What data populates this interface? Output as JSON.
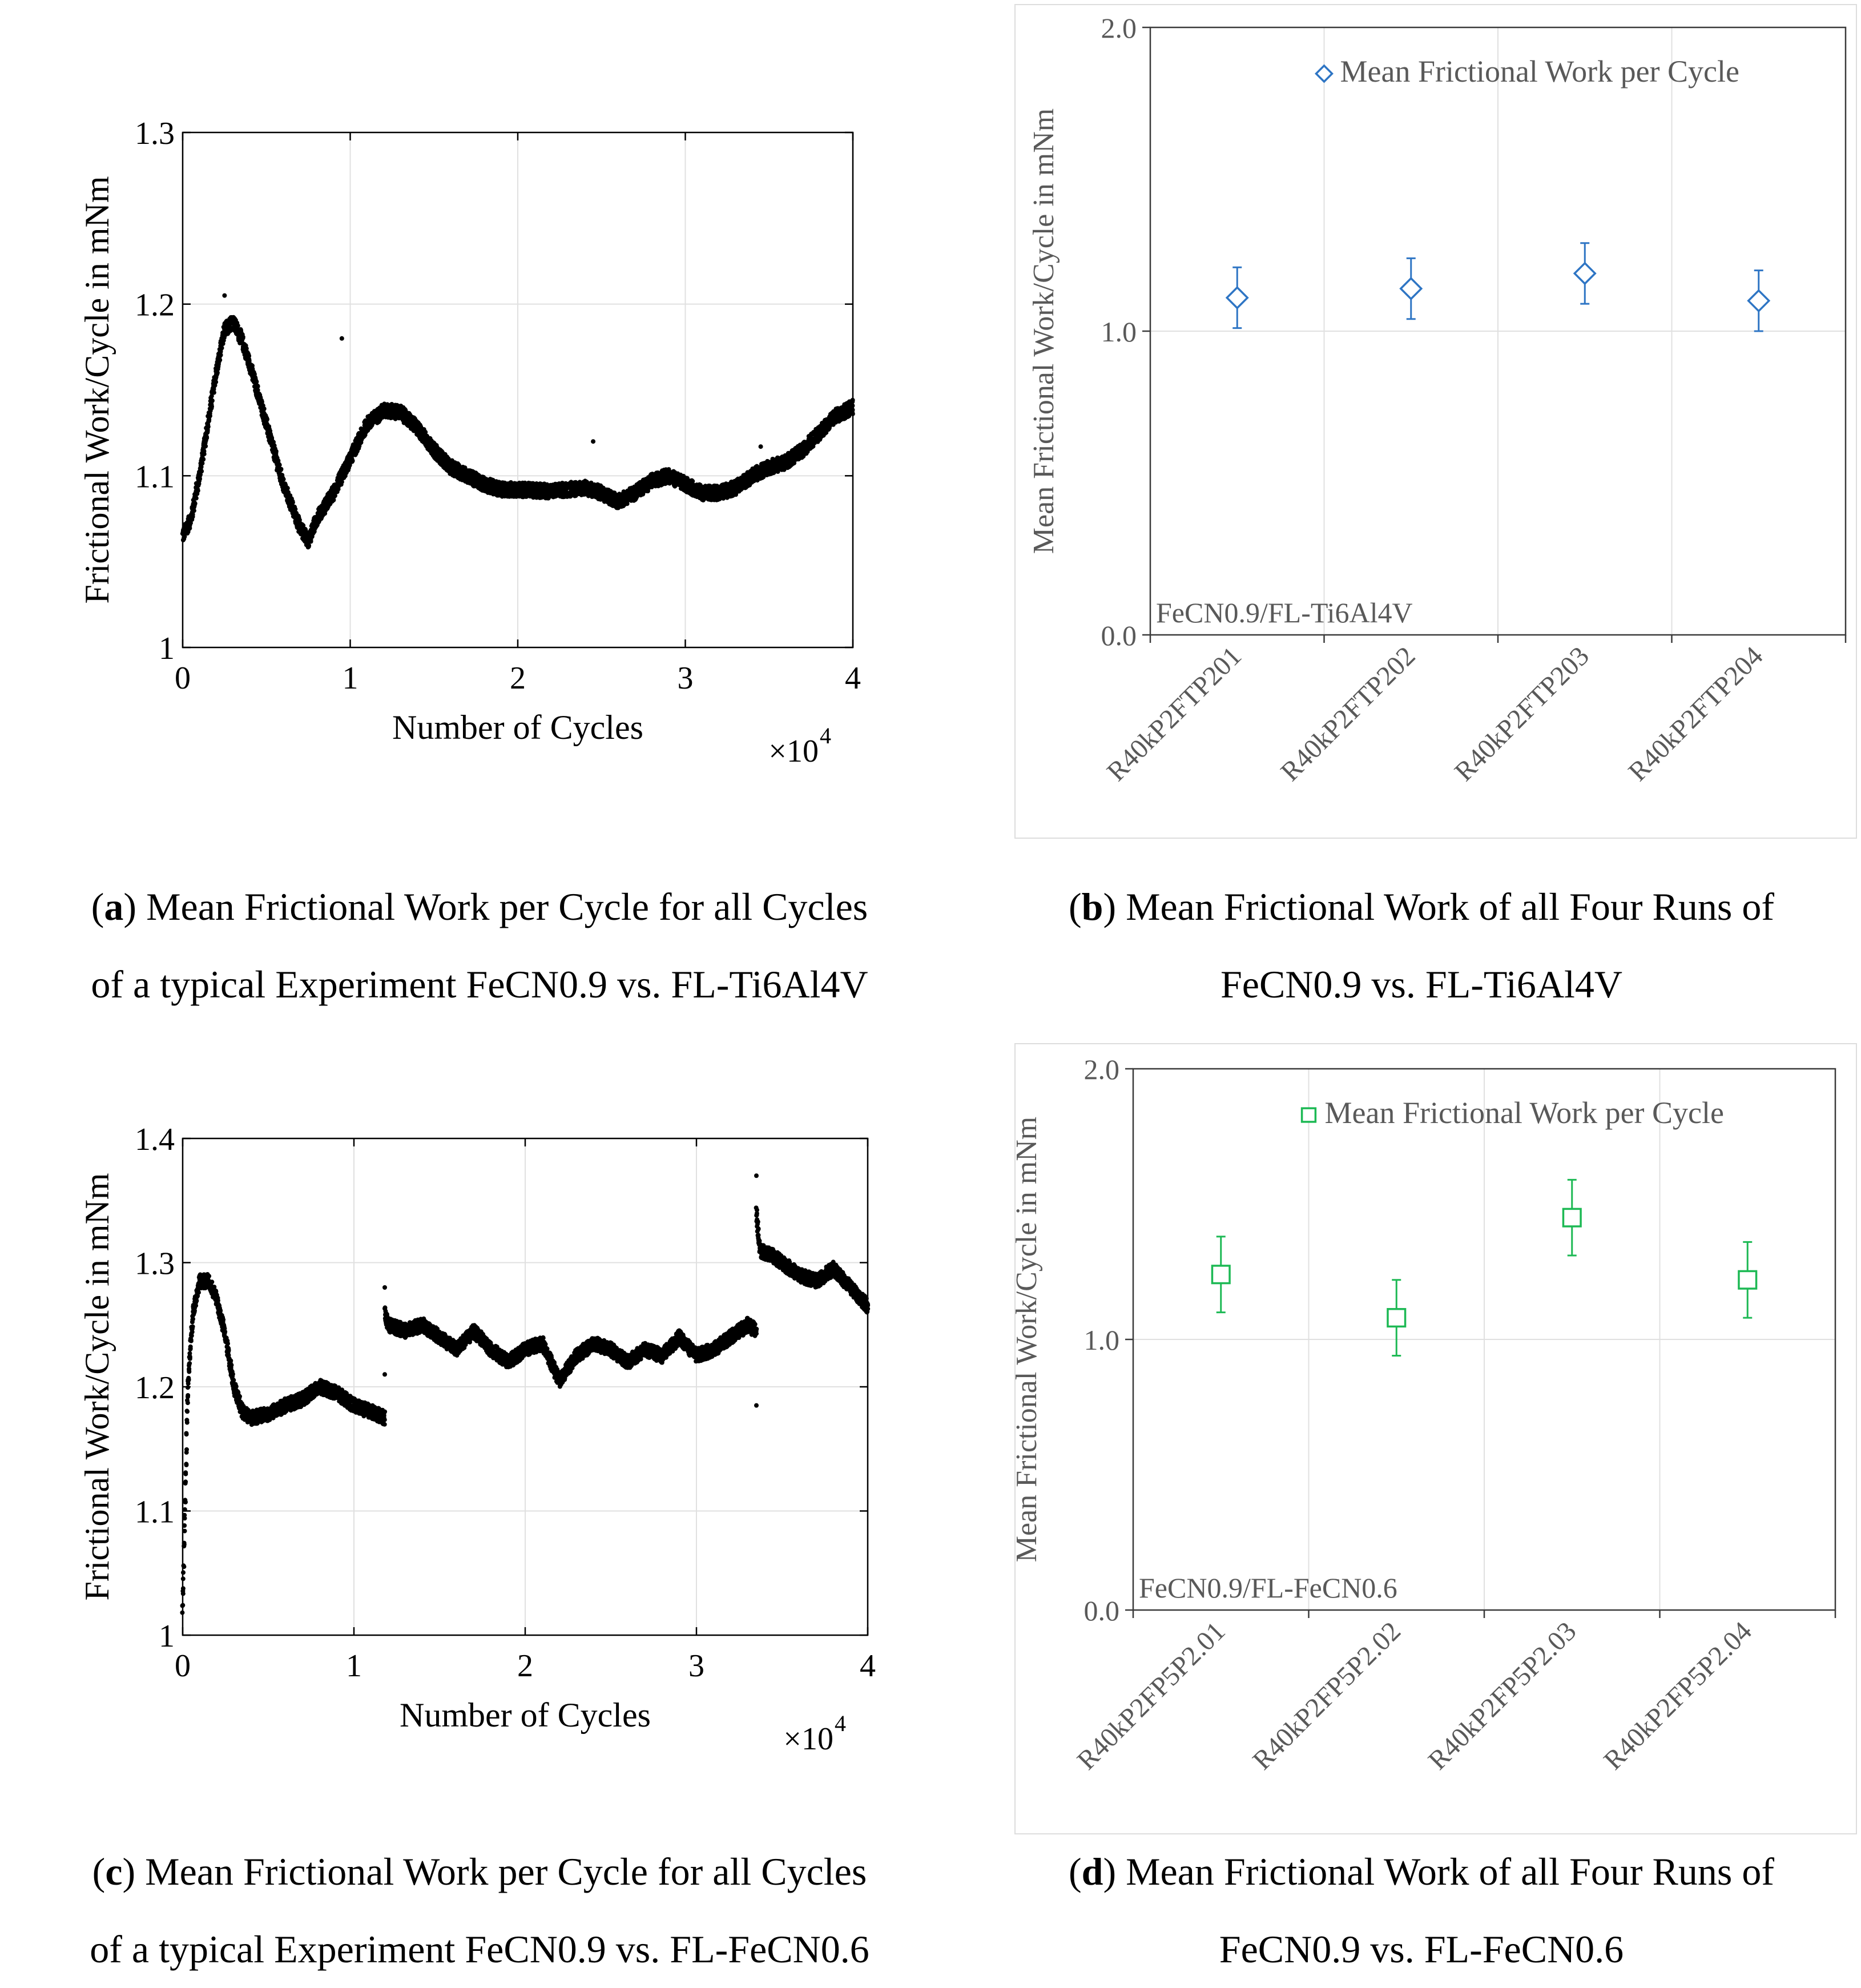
{
  "captions": {
    "a": {
      "letter": "a",
      "line1": ") Mean Frictional Work per Cycle for all Cycles",
      "line2": "of a typical Experiment FeCN0.9 vs. FL-Ti6Al4V"
    },
    "b": {
      "letter": "b",
      "line1": ") Mean Frictional Work of all Four Runs of",
      "line2": "FeCN0.9 vs. FL-Ti6Al4V"
    },
    "c": {
      "letter": "c",
      "line1": ") Mean Frictional Work per Cycle for all Cycles",
      "line2": "of a typical Experiment FeCN0.9 vs. FL-FeCN0.6"
    },
    "d": {
      "letter": "d",
      "line1": ") Mean Frictional Work of all Four Runs of",
      "line2": "FeCN0.9 vs. FL-FeCN0.6"
    }
  },
  "colors": {
    "blue": "#2e75c4",
    "green": "#1db954",
    "black": "#000000",
    "grid": "#e0e0e0",
    "textgray": "#595959"
  },
  "chart_data": [
    {
      "id": "a",
      "type": "scatter",
      "xlabel": "Number of Cycles",
      "ylabel": "Frictional Work/Cycle in mNm",
      "xlim": [
        0,
        4
      ],
      "ylim": [
        1,
        1.3
      ],
      "xticks": [
        "0",
        "1",
        "2",
        "3",
        "4"
      ],
      "yticks": [
        "1",
        "1.1",
        "1.2",
        "1.3"
      ],
      "x_multiplier": "×10",
      "x_multiplier_exp": "4",
      "x": [
        0,
        0.05,
        0.1,
        0.15,
        0.2,
        0.25,
        0.3,
        0.35,
        0.4,
        0.5,
        0.6,
        0.7,
        0.75,
        0.8,
        0.9,
        1.0,
        1.1,
        1.2,
        1.3,
        1.4,
        1.5,
        1.6,
        1.7,
        1.8,
        1.9,
        2.0,
        2.2,
        2.4,
        2.5,
        2.6,
        2.7,
        2.8,
        2.9,
        3.0,
        3.1,
        3.2,
        3.3,
        3.4,
        3.5,
        3.6,
        3.7,
        3.8,
        3.9,
        4.0
      ],
      "y": [
        1.065,
        1.075,
        1.1,
        1.13,
        1.16,
        1.185,
        1.19,
        1.18,
        1.165,
        1.13,
        1.095,
        1.07,
        1.062,
        1.075,
        1.09,
        1.11,
        1.13,
        1.138,
        1.137,
        1.128,
        1.115,
        1.105,
        1.1,
        1.095,
        1.092,
        1.092,
        1.091,
        1.093,
        1.09,
        1.085,
        1.09,
        1.097,
        1.1,
        1.095,
        1.09,
        1.09,
        1.093,
        1.1,
        1.105,
        1.108,
        1.115,
        1.125,
        1.135,
        1.14
      ],
      "outliers": [
        [
          0.95,
          1.18
        ],
        [
          0.25,
          1.205
        ],
        [
          3.45,
          1.117
        ],
        [
          2.45,
          1.12
        ]
      ]
    },
    {
      "id": "b",
      "type": "scatter",
      "legend": "Mean Frictional Work per Cycle",
      "ylabel": "Mean Frictional Work/Cycle in mNm",
      "annotation": "FeCN0.9/FL-Ti6Al4V",
      "ylim": [
        0,
        2
      ],
      "yticks": [
        "0.0",
        "1.0",
        "2.0"
      ],
      "categories": [
        "R40kP2FTP201",
        "R40kP2FTP202",
        "R40kP2FTP203",
        "R40kP2FTP204"
      ],
      "values": [
        1.11,
        1.14,
        1.19,
        1.1
      ],
      "errors": [
        0.1,
        0.1,
        0.1,
        0.1
      ]
    },
    {
      "id": "c",
      "type": "scatter",
      "xlabel": "Number of Cycles",
      "ylabel": "Frictional Work/Cycle in mNm",
      "xlim": [
        0,
        4
      ],
      "ylim": [
        1,
        1.4
      ],
      "xticks": [
        "0",
        "1",
        "2",
        "3",
        "4"
      ],
      "yticks": [
        "1",
        "1.1",
        "1.2",
        "1.3",
        "1.4"
      ],
      "x_multiplier": "×10",
      "x_multiplier_exp": "4",
      "segments": [
        {
          "x": [
            0,
            0.03,
            0.06,
            0.1,
            0.15,
            0.2,
            0.25,
            0.3,
            0.35,
            0.4,
            0.5,
            0.6,
            0.7,
            0.8,
            0.9,
            1.0,
            1.1,
            1.18
          ],
          "y": [
            1.02,
            1.2,
            1.26,
            1.285,
            1.285,
            1.27,
            1.24,
            1.2,
            1.18,
            1.175,
            1.178,
            1.185,
            1.19,
            1.2,
            1.195,
            1.185,
            1.18,
            1.175
          ]
        },
        {
          "x": [
            1.18,
            1.2,
            1.3,
            1.4,
            1.5,
            1.6,
            1.7,
            1.8,
            1.9,
            2.0,
            2.1,
            2.2,
            2.3,
            2.4,
            2.5,
            2.6,
            2.7,
            2.8,
            2.9,
            3.0,
            3.1,
            3.2,
            3.3,
            3.35
          ],
          "y": [
            1.26,
            1.25,
            1.245,
            1.25,
            1.24,
            1.23,
            1.245,
            1.23,
            1.22,
            1.23,
            1.235,
            1.205,
            1.225,
            1.235,
            1.23,
            1.22,
            1.23,
            1.225,
            1.24,
            1.225,
            1.23,
            1.24,
            1.25,
            1.245
          ]
        },
        {
          "x": [
            3.35,
            3.37,
            3.45,
            3.5,
            3.6,
            3.7,
            3.8,
            3.9,
            4.0
          ],
          "y": [
            1.34,
            1.31,
            1.305,
            1.3,
            1.29,
            1.285,
            1.295,
            1.28,
            1.265
          ]
        }
      ],
      "outliers": [
        [
          3.35,
          1.37
        ],
        [
          3.35,
          1.185
        ],
        [
          1.18,
          1.21
        ],
        [
          1.18,
          1.28
        ]
      ]
    },
    {
      "id": "d",
      "type": "scatter",
      "legend": "Mean Frictional Work per Cycle",
      "ylabel": "Mean Frictional Work/Cycle in mNm",
      "annotation": "FeCN0.9/FL-FeCN0.6",
      "ylim": [
        0,
        2
      ],
      "yticks": [
        "0.0",
        "1.0",
        "2.0"
      ],
      "categories": [
        "R40kP2FP5P2.01",
        "R40kP2FP5P2.02",
        "R40kP2FP5P2.03",
        "R40kP2FP5P2.04"
      ],
      "values": [
        1.24,
        1.08,
        1.45,
        1.22
      ],
      "errors": [
        0.14,
        0.14,
        0.14,
        0.14
      ]
    }
  ]
}
